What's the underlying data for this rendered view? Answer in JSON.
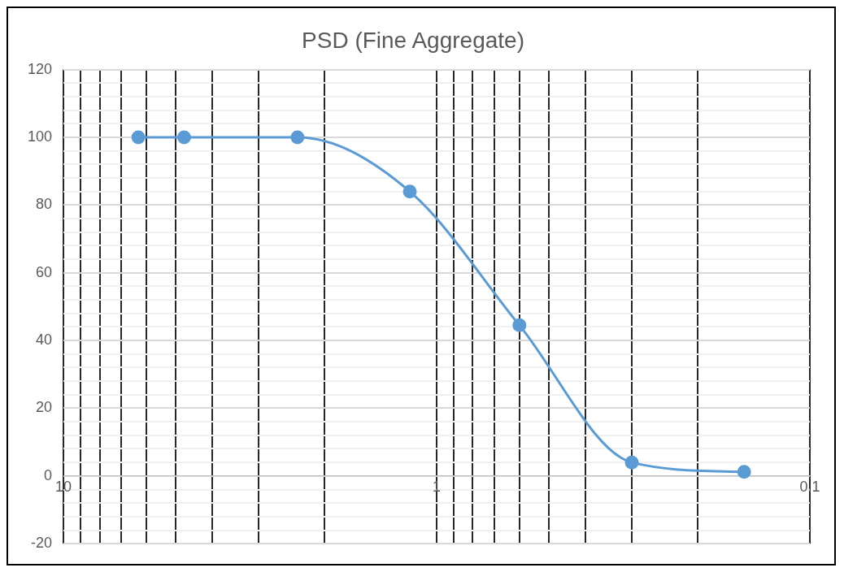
{
  "chart_data": {
    "type": "line",
    "title": "PSD (Fine Aggregate)",
    "x": [
      6.3,
      4.75,
      2.36,
      1.18,
      0.6,
      0.3,
      0.15
    ],
    "series": [
      {
        "color": "#5b9bd5",
        "values": [
          100,
          100,
          100,
          84,
          44.5,
          4,
          1.2
        ]
      }
    ],
    "log": "x",
    "xlim": [
      10,
      0.1
    ],
    "xticks": [
      10,
      {
        "value": 9,
        "label": null
      },
      {
        "value": 8,
        "label": null
      },
      {
        "value": 7,
        "label": null
      },
      {
        "value": 6,
        "label": null
      },
      {
        "value": 5,
        "label": null
      },
      {
        "value": 4,
        "label": null
      },
      {
        "value": 3,
        "label": null
      },
      {
        "value": 2,
        "label": null
      },
      1,
      {
        "value": 0.9,
        "label": null
      },
      {
        "value": 0.8,
        "label": null
      },
      {
        "value": 0.7,
        "label": null
      },
      {
        "value": 0.6,
        "label": null
      },
      {
        "value": 0.5,
        "label": null
      },
      {
        "value": 0.4,
        "label": null
      },
      {
        "value": 0.3,
        "label": null
      },
      {
        "value": 0.2,
        "label": null
      },
      0.1
    ],
    "ylim": [
      -20,
      120
    ],
    "yticks": [
      -20,
      {
        "value": -16,
        "label": null
      },
      {
        "value": -12,
        "label": null
      },
      {
        "value": -8,
        "label": null
      },
      {
        "value": -4,
        "label": null
      },
      0,
      {
        "value": 4,
        "label": null
      },
      {
        "value": 8,
        "label": null
      },
      {
        "value": 12,
        "label": null
      },
      {
        "value": 16,
        "label": null
      },
      20,
      {
        "value": 24,
        "label": null
      },
      {
        "value": 28,
        "label": null
      },
      {
        "value": 32,
        "label": null
      },
      {
        "value": 36,
        "label": null
      },
      40,
      {
        "value": 44,
        "label": null
      },
      {
        "value": 48,
        "label": null
      },
      {
        "value": 52,
        "label": null
      },
      {
        "value": 56,
        "label": null
      },
      60,
      {
        "value": 64,
        "label": null
      },
      {
        "value": 68,
        "label": null
      },
      {
        "value": 72,
        "label": null
      },
      {
        "value": 76,
        "label": null
      },
      80,
      {
        "value": 84,
        "label": null
      },
      {
        "value": 88,
        "label": null
      },
      {
        "value": 92,
        "label": null
      },
      {
        "value": 96,
        "label": null
      },
      100,
      {
        "value": 104,
        "label": null
      },
      {
        "value": 108,
        "label": null
      },
      {
        "value": 112,
        "label": null
      },
      {
        "value": 116,
        "label": null
      },
      120
    ],
    "grid": true,
    "marker": "circle",
    "line_style": "solid",
    "legend": false
  }
}
